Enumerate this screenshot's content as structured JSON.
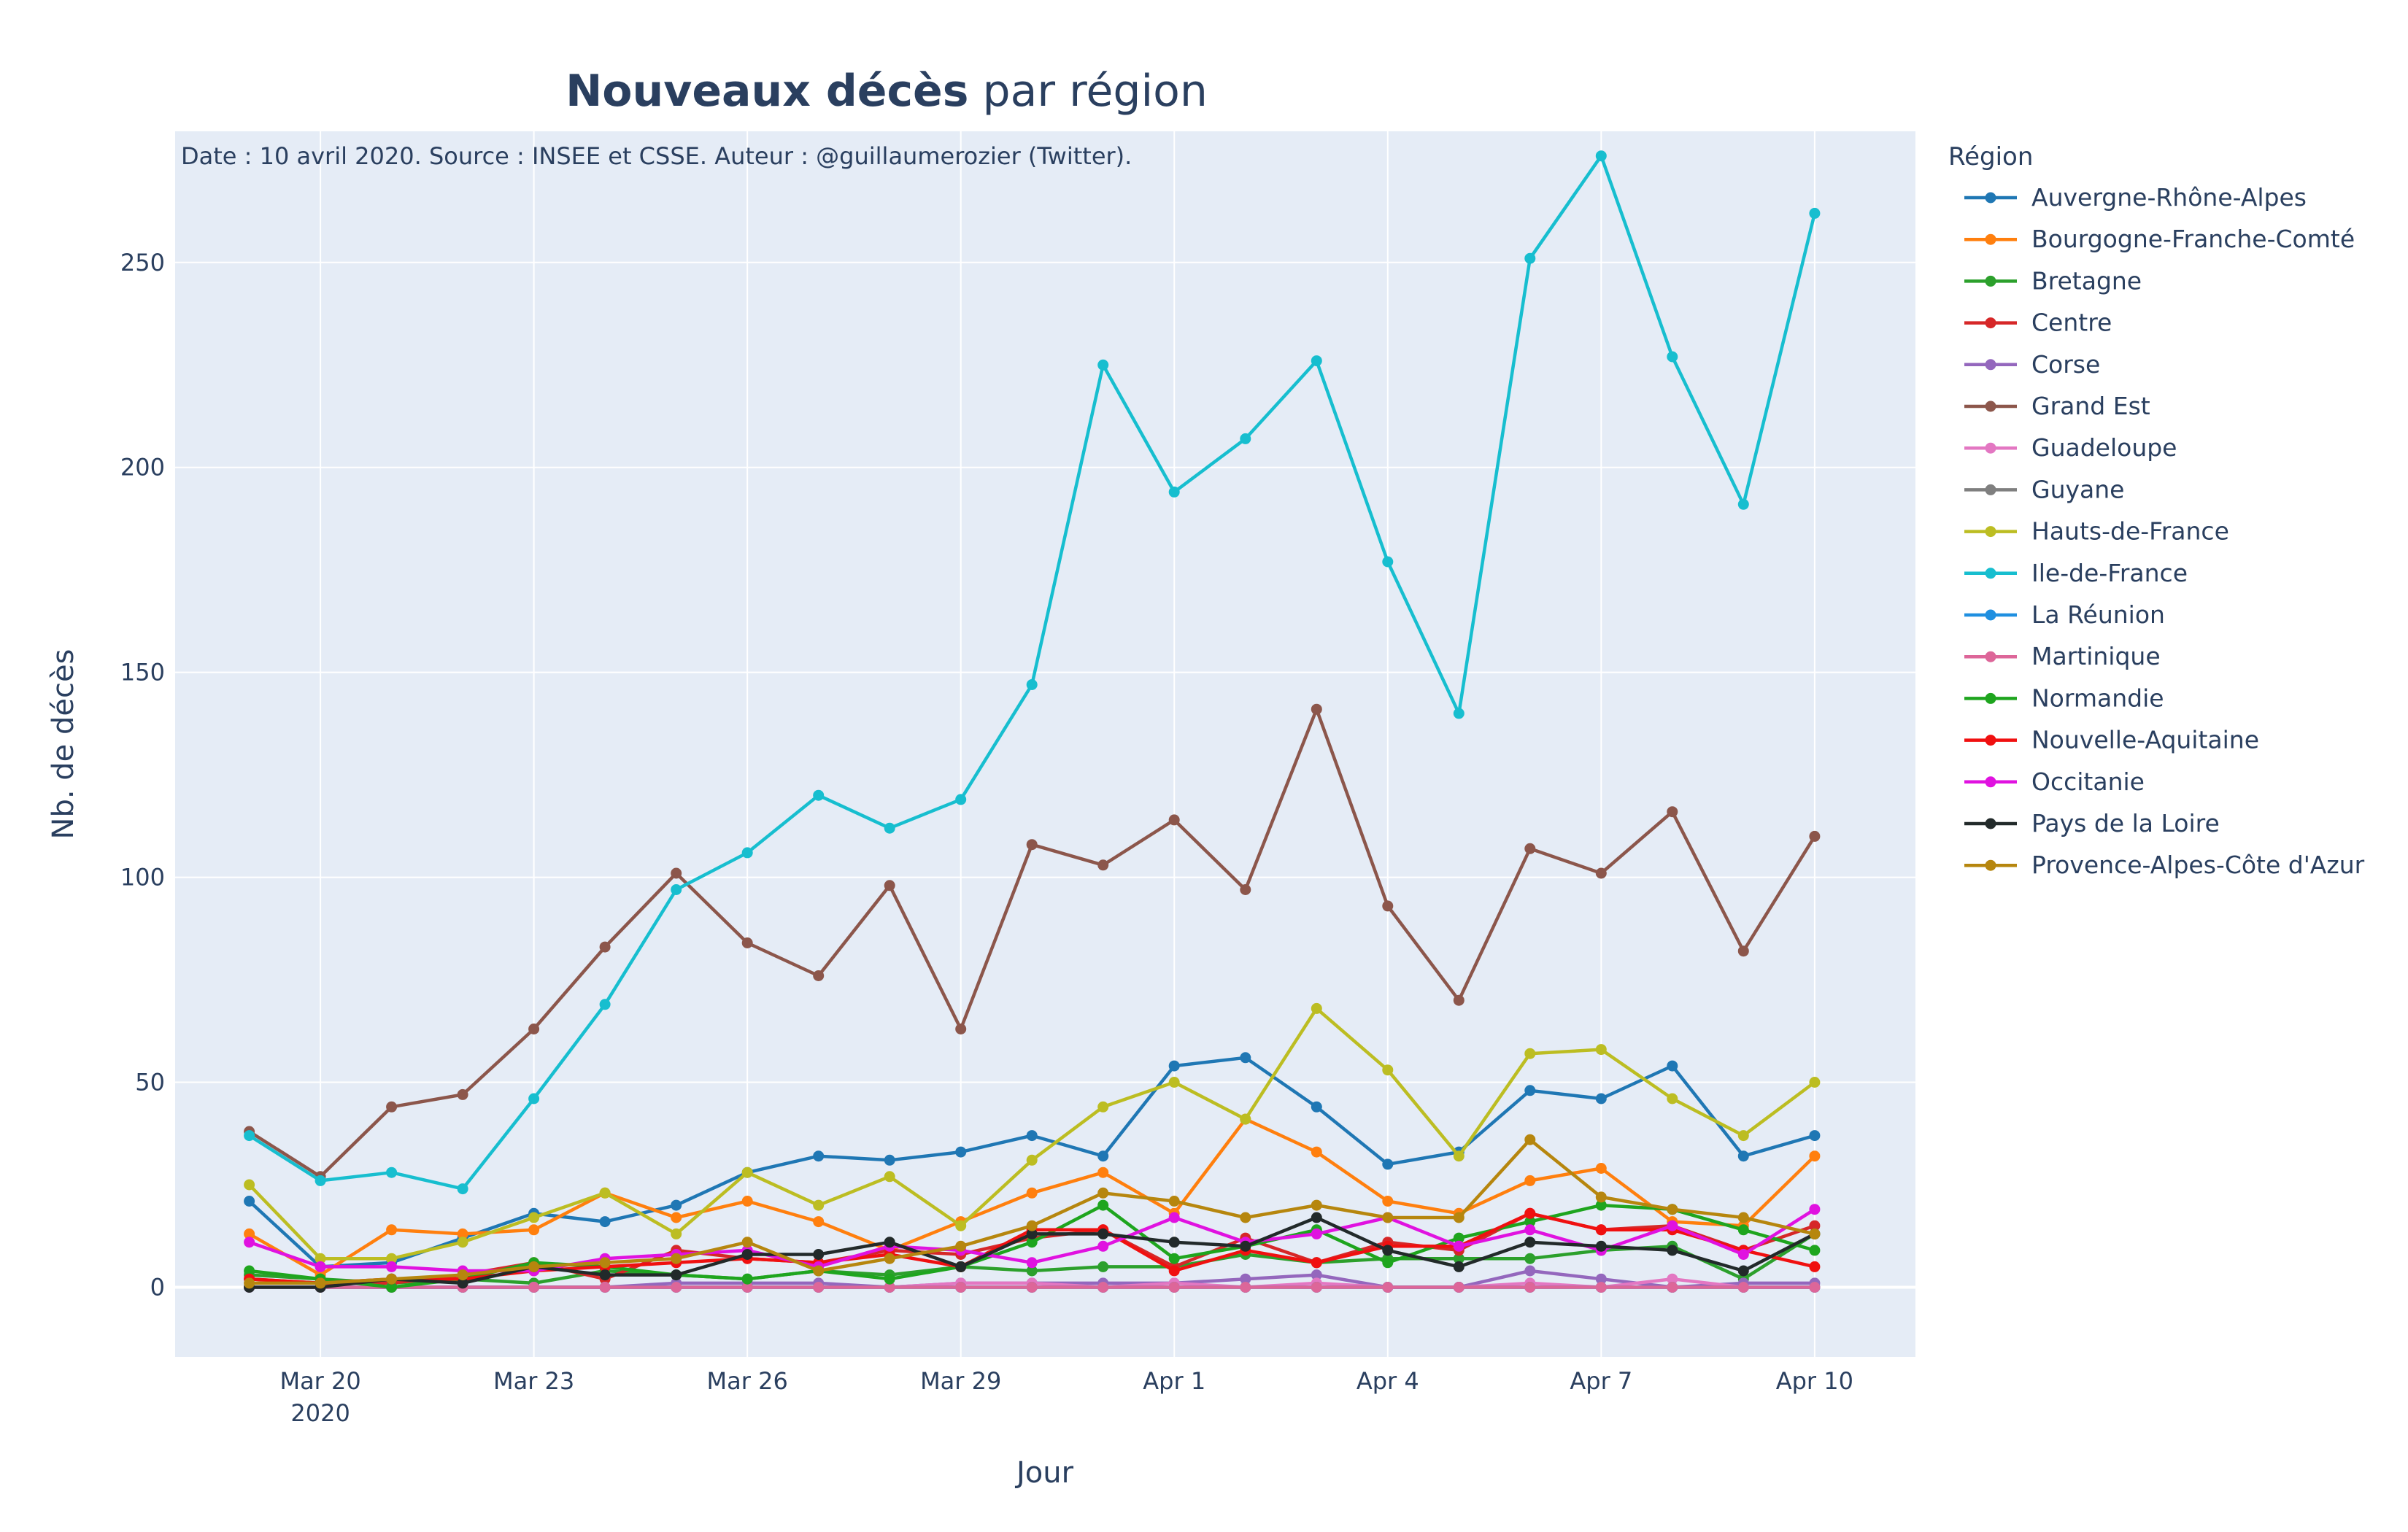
{
  "chart_data": {
    "type": "line",
    "title_bold": "Nouveaux décès",
    "title_rest": " par région",
    "annotation": "Date : 10 avril 2020. Source : INSEE et CSSE. Auteur : @guillaumerozier (Twitter).",
    "xlabel": "Jour",
    "ylabel": "Nb. de décès",
    "legend_title": "Région",
    "legend_position": "right",
    "x": [
      "2020-03-19",
      "2020-03-20",
      "2020-03-21",
      "2020-03-22",
      "2020-03-23",
      "2020-03-24",
      "2020-03-25",
      "2020-03-26",
      "2020-03-27",
      "2020-03-28",
      "2020-03-29",
      "2020-03-30",
      "2020-03-31",
      "2020-04-01",
      "2020-04-02",
      "2020-04-03",
      "2020-04-04",
      "2020-04-05",
      "2020-04-06",
      "2020-04-07",
      "2020-04-08",
      "2020-04-09",
      "2020-04-10"
    ],
    "xlim": [
      "2020-03-17 23:00",
      "2020-04-11 10:00"
    ],
    "x_ticks": [
      {
        "date": "2020-03-20",
        "label": "Mar 20",
        "sub": "2020"
      },
      {
        "date": "2020-03-23",
        "label": "Mar 23"
      },
      {
        "date": "2020-03-26",
        "label": "Mar 26"
      },
      {
        "date": "2020-03-29",
        "label": "Mar 29"
      },
      {
        "date": "2020-04-01",
        "label": "Apr 1"
      },
      {
        "date": "2020-04-04",
        "label": "Apr 4"
      },
      {
        "date": "2020-04-07",
        "label": "Apr 7"
      },
      {
        "date": "2020-04-10",
        "label": "Apr 10"
      }
    ],
    "ylim": [
      -17,
      282
    ],
    "y_ticks": [
      0,
      50,
      100,
      150,
      200,
      250
    ],
    "grid": true,
    "series": [
      {
        "name": "Auvergne-Rhône-Alpes",
        "color": "#1f77b4",
        "values": [
          21,
          5,
          6,
          12,
          18,
          16,
          20,
          28,
          32,
          31,
          33,
          37,
          32,
          54,
          56,
          44,
          30,
          33,
          48,
          46,
          54,
          32,
          37
        ]
      },
      {
        "name": "Bourgogne-Franche-Comté",
        "color": "#ff7f0e",
        "values": [
          13,
          3,
          14,
          13,
          14,
          23,
          17,
          21,
          16,
          9,
          16,
          23,
          28,
          18,
          41,
          33,
          21,
          18,
          26,
          29,
          16,
          15,
          32
        ]
      },
      {
        "name": "Bretagne",
        "color": "#2ca02c",
        "values": [
          3,
          2,
          1,
          2,
          1,
          4,
          3,
          2,
          4,
          3,
          5,
          4,
          5,
          5,
          8,
          6,
          7,
          7,
          7,
          9,
          10,
          2,
          13
        ]
      },
      {
        "name": "Centre",
        "color": "#d62728",
        "values": [
          2,
          1,
          1,
          3,
          6,
          2,
          9,
          7,
          6,
          9,
          8,
          12,
          14,
          5,
          12,
          6,
          11,
          9,
          18,
          14,
          15,
          9,
          15
        ]
      },
      {
        "name": "Corse",
        "color": "#9467bd",
        "values": [
          0,
          0,
          0,
          0,
          0,
          0,
          1,
          1,
          1,
          0,
          1,
          1,
          1,
          1,
          2,
          3,
          0,
          0,
          4,
          2,
          0,
          1,
          1
        ]
      },
      {
        "name": "Grand Est",
        "color": "#8c564b",
        "values": [
          38,
          27,
          44,
          47,
          63,
          83,
          101,
          84,
          76,
          98,
          63,
          108,
          103,
          114,
          97,
          141,
          93,
          70,
          107,
          101,
          116,
          82,
          110
        ]
      },
      {
        "name": "Guadeloupe",
        "color": "#e377c2",
        "values": [
          0,
          0,
          0,
          0,
          0,
          0,
          0,
          0,
          0,
          0,
          1,
          1,
          0,
          1,
          0,
          1,
          0,
          0,
          1,
          0,
          2,
          0,
          0
        ]
      },
      {
        "name": "Guyane",
        "color": "#7f7f7f",
        "values": [
          0,
          0,
          0,
          0,
          0,
          0,
          0,
          0,
          0,
          0,
          0,
          0,
          0,
          0,
          0,
          0,
          0,
          0,
          0,
          0,
          0,
          0,
          0
        ]
      },
      {
        "name": "Hauts-de-France",
        "color": "#bcbd22",
        "values": [
          25,
          7,
          7,
          11,
          17,
          23,
          13,
          28,
          20,
          27,
          15,
          31,
          44,
          50,
          41,
          68,
          53,
          32,
          57,
          58,
          46,
          37,
          50
        ]
      },
      {
        "name": "Ile-de-France",
        "color": "#17becf",
        "values": [
          37,
          26,
          28,
          24,
          46,
          69,
          97,
          106,
          120,
          112,
          119,
          147,
          225,
          194,
          207,
          226,
          177,
          140,
          251,
          276,
          227,
          191,
          262
        ]
      },
      {
        "name": "La Réunion",
        "color": "#1f8fe0",
        "values": [
          0,
          0,
          0,
          0,
          0,
          0,
          0,
          0,
          0,
          0,
          0,
          0,
          0,
          0,
          0,
          0,
          0,
          0,
          0,
          0,
          0,
          0,
          0
        ]
      },
      {
        "name": "Martinique",
        "color": "#dd6699",
        "values": [
          0,
          0,
          0,
          0,
          0,
          0,
          0,
          0,
          0,
          0,
          0,
          0,
          0,
          0,
          0,
          0,
          0,
          0,
          0,
          0,
          0,
          0,
          0
        ]
      },
      {
        "name": "Normandie",
        "color": "#1ea51e",
        "values": [
          4,
          2,
          0,
          2,
          6,
          5,
          3,
          2,
          4,
          2,
          5,
          11,
          20,
          7,
          10,
          14,
          6,
          12,
          16,
          20,
          19,
          14,
          9
        ]
      },
      {
        "name": "Nouvelle-Aquitaine",
        "color": "#f01010",
        "values": [
          2,
          1,
          2,
          2,
          4,
          5,
          6,
          7,
          6,
          8,
          5,
          14,
          14,
          4,
          9,
          6,
          10,
          10,
          18,
          14,
          14,
          9,
          5
        ]
      },
      {
        "name": "Occitanie",
        "color": "#e012e0",
        "values": [
          11,
          5,
          5,
          4,
          4,
          7,
          8,
          9,
          5,
          10,
          9,
          6,
          10,
          17,
          11,
          13,
          17,
          10,
          14,
          9,
          15,
          8,
          19
        ]
      },
      {
        "name": "Pays de la Loire",
        "color": "#222a2a",
        "values": [
          0,
          0,
          2,
          1,
          5,
          3,
          3,
          8,
          8,
          11,
          5,
          13,
          13,
          11,
          10,
          17,
          9,
          5,
          11,
          10,
          9,
          4,
          13
        ]
      },
      {
        "name": "Provence-Alpes-Côte d'Azur",
        "color": "#b6860e",
        "values": [
          1,
          1,
          2,
          3,
          5,
          6,
          7,
          11,
          4,
          7,
          10,
          15,
          23,
          21,
          17,
          20,
          17,
          17,
          36,
          22,
          19,
          17,
          13
        ]
      }
    ]
  }
}
